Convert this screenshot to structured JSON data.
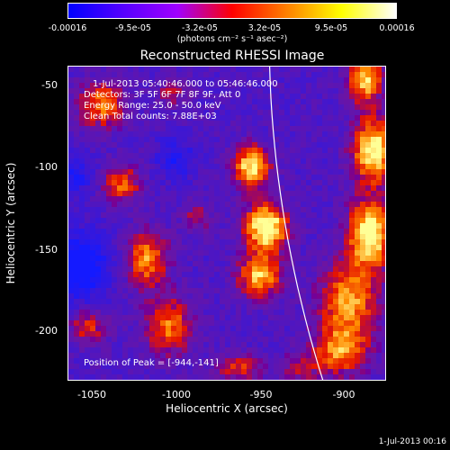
{
  "colorbar": {
    "ticks": [
      "-0.00016",
      "-9.5e-05",
      "-3.2e-05",
      "3.2e-05",
      "9.5e-05",
      "0.00016"
    ],
    "unit": "(photons cm⁻² s⁻¹ asec⁻²)",
    "colormap": [
      "#0000ff",
      "#5500ff",
      "#a000ff",
      "#ff0000",
      "#ff8000",
      "#ffff00",
      "#ffffff"
    ]
  },
  "title": "Reconstructed RHESSI Image",
  "info": {
    "time_range": "1-Jul-2013 05:40:46.000 to 05:46:46.000",
    "detectors": "Detectors: 3F 5F 6F 7F 8F 9F, Att 0",
    "energy": "Energy Range: 25.0 - 50.0 keV",
    "method": "Clean     Total counts: 7.88E+03",
    "peak": "Position of Peak = [-944,-141]"
  },
  "axes": {
    "xlabel": "Heliocentric X (arcsec)",
    "ylabel": "Heliocentric Y (arcsec)",
    "xticks": [
      "-1050",
      "-1000",
      "-950",
      "-900"
    ],
    "yticks": [
      "-50",
      "-100",
      "-150",
      "-200"
    ]
  },
  "footer": "1-Jul-2013 00:16",
  "chart_data": {
    "type": "heatmap",
    "title": "Reconstructed RHESSI Image",
    "xlabel": "Heliocentric X (arcsec)",
    "ylabel": "Heliocentric Y (arcsec)",
    "xlim": [
      -1062,
      -872
    ],
    "ylim": [
      -233,
      -45
    ],
    "zlim": [
      -0.00016,
      0.00016
    ],
    "peak": [
      -944,
      -141
    ],
    "limb": true
  }
}
